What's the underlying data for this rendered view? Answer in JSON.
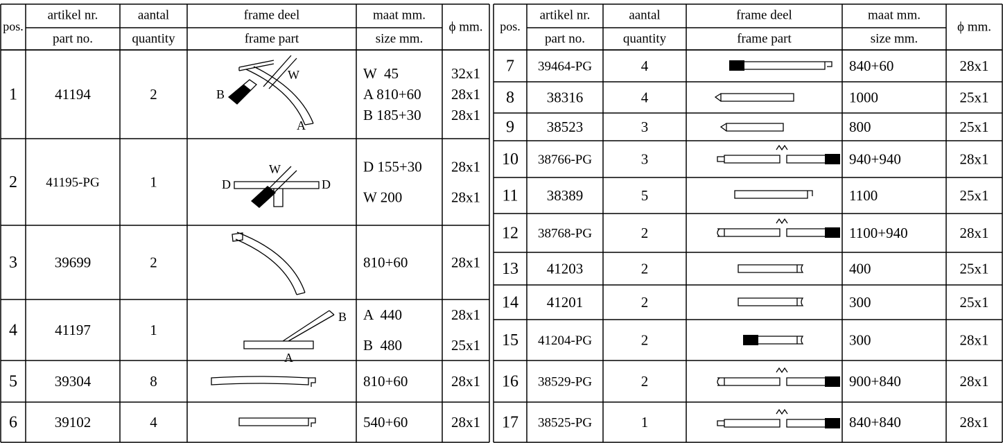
{
  "tables": [
    {
      "header": {
        "pos": "pos.",
        "art_nl": "artikel nr.",
        "art_en": "part no.",
        "qty_nl": "aantal",
        "qty_en": "quantity",
        "frame_nl": "frame deel",
        "frame_en": "frame part",
        "size_nl": "maat mm.",
        "size_en": "size mm.",
        "dia": "ϕ mm."
      },
      "rows": [
        {
          "pos": 1,
          "part_no": "41194",
          "quantity": 2,
          "size": [
            "W  45",
            "A 810+60",
            "B 185+30"
          ],
          "diameter": [
            "32x1",
            "28x1",
            "28x1"
          ],
          "drawing_labels": [
            "W",
            "B",
            "A"
          ]
        },
        {
          "pos": 2,
          "part_no": "41195-PG",
          "quantity": 1,
          "size": [
            "D 155+30",
            "W 200"
          ],
          "diameter": [
            "28x1",
            "28x1"
          ],
          "drawing_labels": [
            "W",
            "D",
            "D"
          ]
        },
        {
          "pos": 3,
          "part_no": "39699",
          "quantity": 2,
          "size": [
            "810+60"
          ],
          "diameter": [
            "28x1"
          ]
        },
        {
          "pos": 4,
          "part_no": "41197",
          "quantity": 1,
          "size": [
            "A  440",
            "B  480"
          ],
          "diameter": [
            "28x1",
            "25x1"
          ],
          "drawing_labels": [
            "B",
            "A"
          ]
        },
        {
          "pos": 5,
          "part_no": "39304",
          "quantity": 8,
          "size": [
            "810+60"
          ],
          "diameter": [
            "28x1"
          ]
        },
        {
          "pos": 6,
          "part_no": "39102",
          "quantity": 4,
          "size": [
            "540+60"
          ],
          "diameter": [
            "28x1"
          ]
        }
      ]
    },
    {
      "header": {
        "pos": "pos.",
        "art_nl": "artikel nr.",
        "art_en": "part no.",
        "qty_nl": "aantal",
        "qty_en": "quantity",
        "frame_nl": "frame deel",
        "frame_en": "frame part",
        "size_nl": "maat mm.",
        "size_en": "size mm.",
        "dia": "ϕ mm."
      },
      "rows": [
        {
          "pos": 7,
          "part_no": "39464-PG",
          "quantity": 4,
          "size": [
            "840+60"
          ],
          "diameter": [
            "28x1"
          ]
        },
        {
          "pos": 8,
          "part_no": "38316",
          "quantity": 4,
          "size": [
            "1000"
          ],
          "diameter": [
            "25x1"
          ]
        },
        {
          "pos": 9,
          "part_no": "38523",
          "quantity": 3,
          "size": [
            "800"
          ],
          "diameter": [
            "25x1"
          ]
        },
        {
          "pos": 10,
          "part_no": "38766-PG",
          "quantity": 3,
          "size": [
            "940+940"
          ],
          "diameter": [
            "28x1"
          ]
        },
        {
          "pos": 11,
          "part_no": "38389",
          "quantity": 5,
          "size": [
            "1100"
          ],
          "diameter": [
            "25x1"
          ]
        },
        {
          "pos": 12,
          "part_no": "38768-PG",
          "quantity": 2,
          "size": [
            "1100+940"
          ],
          "diameter": [
            "28x1"
          ]
        },
        {
          "pos": 13,
          "part_no": "41203",
          "quantity": 2,
          "size": [
            "400"
          ],
          "diameter": [
            "25x1"
          ]
        },
        {
          "pos": 14,
          "part_no": "41201",
          "quantity": 2,
          "size": [
            "300"
          ],
          "diameter": [
            "25x1"
          ]
        },
        {
          "pos": 15,
          "part_no": "41204-PG",
          "quantity": 2,
          "size": [
            "300"
          ],
          "diameter": [
            "28x1"
          ]
        },
        {
          "pos": 16,
          "part_no": "38529-PG",
          "quantity": 2,
          "size": [
            "900+840"
          ],
          "diameter": [
            "28x1"
          ]
        },
        {
          "pos": 17,
          "part_no": "38525-PG",
          "quantity": 1,
          "size": [
            "840+840"
          ],
          "diameter": [
            "28x1"
          ]
        }
      ]
    }
  ]
}
